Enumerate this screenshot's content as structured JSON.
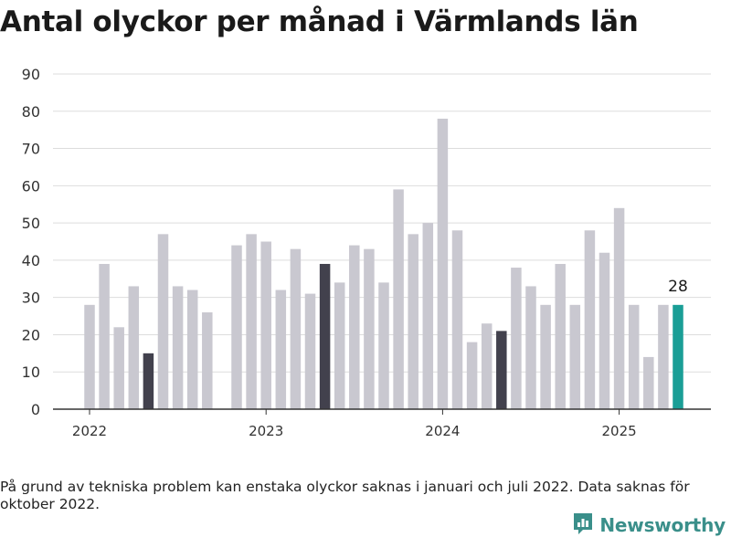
{
  "title": "Antal olyckor per månad i Värmlands län",
  "note": "På grund av tekniska problem kan enstaka olyckor saknas i januari och juli 2022. Data saknas för oktober 2022.",
  "logo": {
    "text": "Newsworthy",
    "icon": "bar-chart-logo-icon"
  },
  "colors": {
    "default": "#c9c8d0",
    "highlight": "#42414d",
    "latest": "#1a9e96",
    "grid": "#dddddd",
    "axis": "#333333",
    "brand": "#3a8f8a"
  },
  "chart_data": {
    "type": "bar",
    "title": "Antal olyckor per månad i Värmlands län",
    "xlabel": "",
    "ylabel": "",
    "ylim": [
      0,
      90
    ],
    "yticks": [
      0,
      10,
      20,
      30,
      40,
      50,
      60,
      70,
      80,
      90
    ],
    "xtick_labels": [
      {
        "label": "2022",
        "month": "2022-01"
      },
      {
        "label": "2023",
        "month": "2023-01"
      },
      {
        "label": "2024",
        "month": "2024-01"
      },
      {
        "label": "2025",
        "month": "2025-01"
      }
    ],
    "grid": true,
    "categories": [
      "2022-01",
      "2022-02",
      "2022-03",
      "2022-04",
      "2022-05",
      "2022-06",
      "2022-07",
      "2022-08",
      "2022-09",
      "2022-10",
      "2022-11",
      "2022-12",
      "2023-01",
      "2023-02",
      "2023-03",
      "2023-04",
      "2023-05",
      "2023-06",
      "2023-07",
      "2023-08",
      "2023-09",
      "2023-10",
      "2023-11",
      "2023-12",
      "2024-01",
      "2024-02",
      "2024-03",
      "2024-04",
      "2024-05",
      "2024-06",
      "2024-07",
      "2024-08",
      "2024-09",
      "2024-10",
      "2024-11",
      "2024-12",
      "2025-01",
      "2025-02",
      "2025-03",
      "2025-04",
      "2025-05"
    ],
    "values": [
      28,
      39,
      22,
      33,
      15,
      47,
      33,
      32,
      26,
      null,
      44,
      47,
      45,
      32,
      43,
      31,
      39,
      34,
      44,
      43,
      34,
      59,
      47,
      50,
      78,
      48,
      18,
      23,
      21,
      38,
      33,
      28,
      39,
      28,
      48,
      42,
      54,
      28,
      14,
      28,
      28
    ],
    "highlight": [
      "2022-05",
      "2023-05",
      "2024-05"
    ],
    "latest": "2025-05",
    "data_labels": [
      {
        "month": "2025-05",
        "text": "28"
      }
    ]
  }
}
